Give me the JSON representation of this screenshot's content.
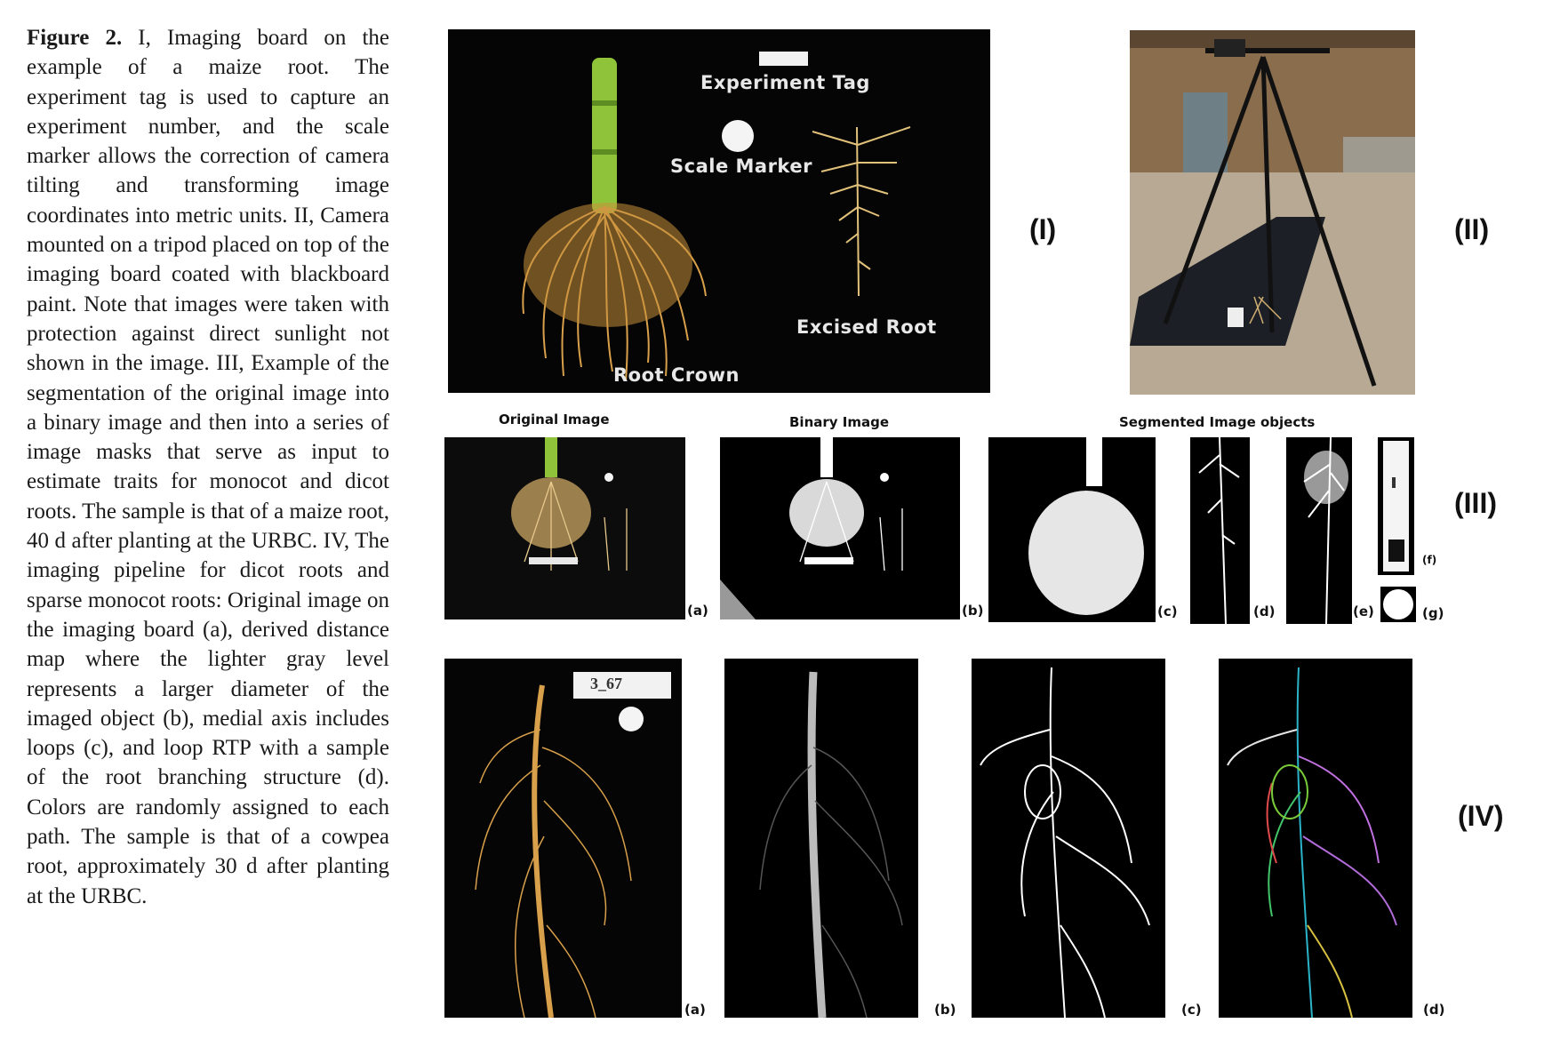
{
  "caption": {
    "label": "Figure 2.",
    "text": "I, Imaging board on the example of a maize root. The experiment tag is used to capture an experiment number, and the scale marker allows the correction of camera tilting and transforming image coordinates into metric units. II, Camera mounted on a tripod placed on top of the imaging board coated with blackboard paint. Note that images were taken with protection against direct sunlight not shown in the image. III, Example of the segmentation of the original image into a binary image and then into a series of image masks that serve as input to estimate traits for monocot and dicot roots. The sample is that of a maize root, 40 d after planting at the URBC. IV, The imaging pipeline for dicot roots and sparse monocot roots: Original image on the imaging board (a), derived distance map where the lighter gray level represents a larger diameter of the imaged object (b), medial axis includes loops (c), and loop RTP with a sample of the root branching structure (d). Colors are randomly assigned to each path. The sample is that of a cowpea root, approximately 30 d after planting at the URBC."
  },
  "panel_I": {
    "label": "(I)",
    "experiment_tag": "Experiment Tag",
    "scale_marker": "Scale Marker",
    "excised_root": "Excised Root",
    "root_crown": "Root Crown"
  },
  "panel_II": {
    "label": "(II)"
  },
  "panel_III": {
    "label": "(III)",
    "original_title": "Original Image",
    "binary_title": "Binary Image",
    "segmented_title": "Segmented Image objects",
    "sub_a": "(a)",
    "sub_b": "(b)",
    "sub_c": "(c)",
    "sub_d": "(d)",
    "sub_e": "(e)",
    "sub_f": "(f)",
    "sub_g": "(g)"
  },
  "panel_IV": {
    "label": "(IV)",
    "sub_a": "(a)",
    "sub_b": "(b)",
    "sub_c": "(c)",
    "sub_d": "(d)",
    "tag_text": "3_67"
  },
  "colors": {
    "board": "#000000",
    "root": "#d8a04a",
    "stem": "#8fc43a",
    "floor": "#2a2f38"
  }
}
